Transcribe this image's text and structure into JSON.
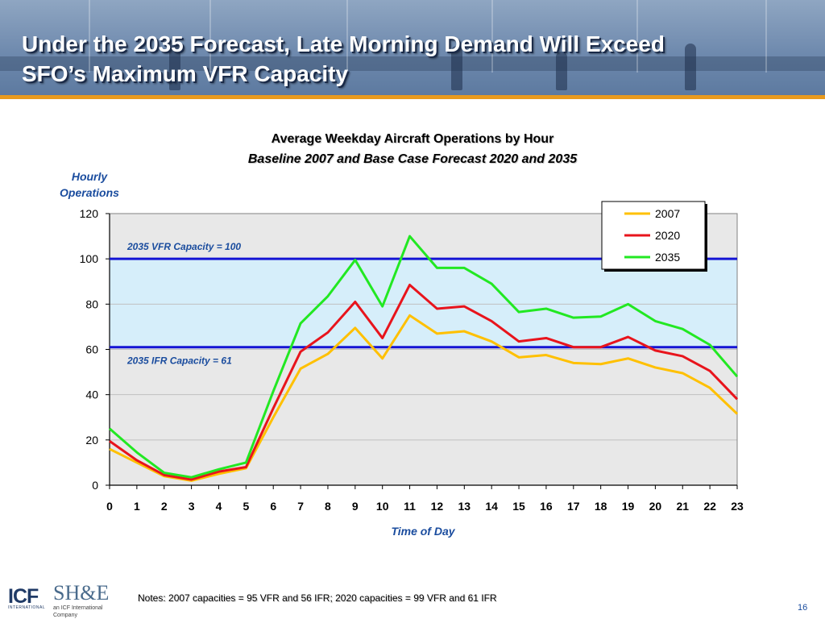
{
  "slide": {
    "title_line1": "Under the 2035 Forecast, Late Morning Demand Will Exceed",
    "title_line2": "SFO’s Maximum VFR Capacity",
    "notes": "Notes: 2007 capacities = 95 VFR and 56 IFR; 2020 capacities = 99 VFR and 61 IFR",
    "page_number": "16",
    "logos": {
      "icf_text": "ICF",
      "icf_subtext": "INTERNATIONAL",
      "she_text": "SH&E",
      "she_subtext": "an ICF International Company"
    }
  },
  "chart_data": {
    "type": "line",
    "title": "Average Weekday Aircraft Operations by Hour",
    "subtitle": "Baseline 2007 and Base Case Forecast 2020 and 2035",
    "ylabel_line1": "Hourly",
    "ylabel_line2": "Operations",
    "xlabel": "Time of Day",
    "x": [
      0,
      1,
      2,
      3,
      4,
      5,
      6,
      7,
      8,
      9,
      10,
      11,
      12,
      13,
      14,
      15,
      16,
      17,
      18,
      19,
      20,
      21,
      22,
      23
    ],
    "ylim": [
      0,
      120
    ],
    "yticks": [
      0,
      20,
      40,
      60,
      80,
      100,
      120
    ],
    "legend_position": "top-right",
    "grid": true,
    "series": [
      {
        "name": "2007",
        "color": "#ffc000",
        "values": [
          16,
          10,
          4,
          2,
          5,
          7.5,
          30,
          51.5,
          58,
          69.5,
          56,
          75,
          67,
          68,
          63.5,
          56.5,
          57.5,
          54,
          53.5,
          56,
          52,
          49.5,
          43,
          31.5
        ]
      },
      {
        "name": "2020",
        "color": "#e8141c",
        "values": [
          19.5,
          11,
          4.5,
          2.5,
          6,
          8,
          34,
          59,
          67.5,
          81,
          65,
          88.5,
          78,
          79,
          72.5,
          63.5,
          65,
          61,
          61,
          65.5,
          59.5,
          57,
          50.5,
          38
        ]
      },
      {
        "name": "2035",
        "color": "#22e822",
        "values": [
          25,
          14.5,
          5.5,
          3.5,
          7,
          10,
          41.5,
          71.5,
          83.5,
          99.5,
          79,
          110,
          96,
          96,
          89,
          76.5,
          78,
          74,
          74.5,
          80,
          72.5,
          69,
          62,
          48
        ]
      }
    ],
    "reference_lines": [
      {
        "label": "2035 VFR Capacity = 100",
        "value": 100,
        "color": "#1414d4"
      },
      {
        "label": "2035 IFR Capacity = 61",
        "value": 61,
        "color": "#1414d4"
      }
    ],
    "colors": {
      "plot_background": "#e8e8e8",
      "capacity_band": "#d6eefa",
      "label_text": "#1a4c9e",
      "gridline": "#c0c0c0"
    }
  }
}
